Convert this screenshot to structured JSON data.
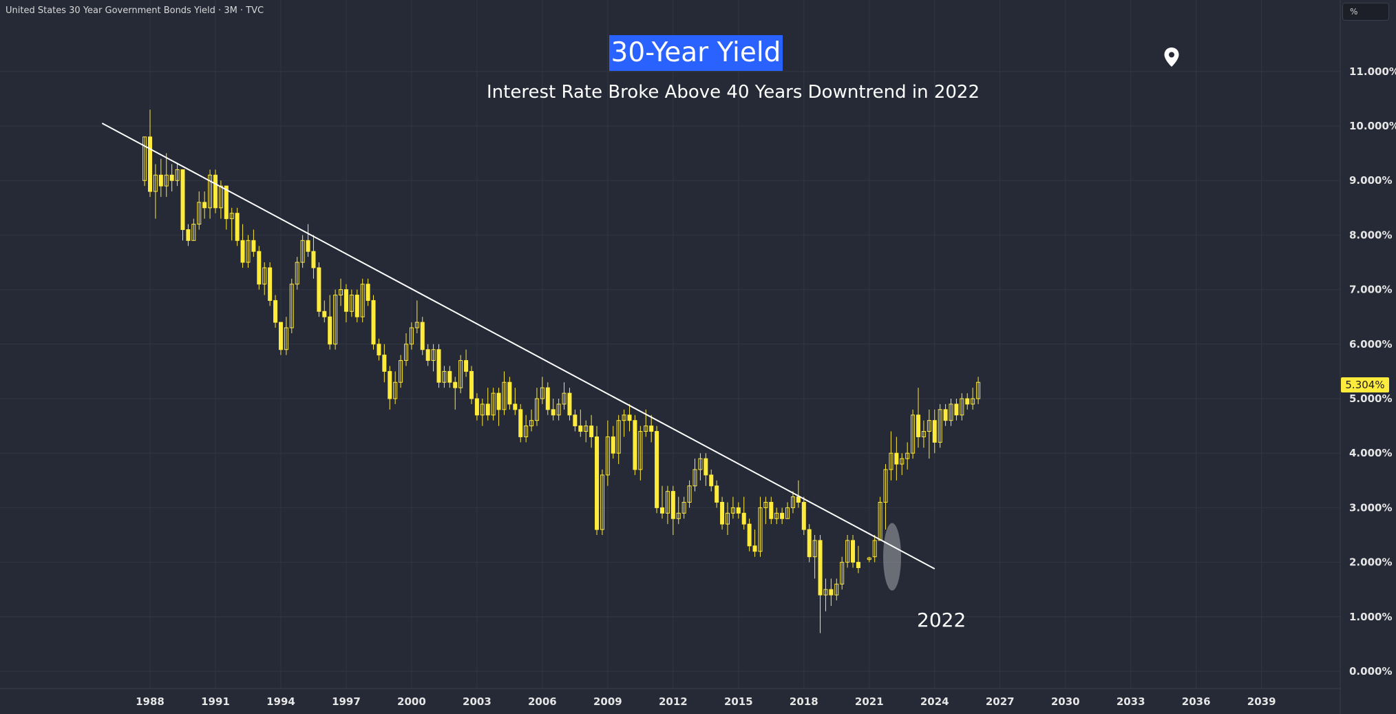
{
  "header": {
    "symbol_title": "United States 30 Year Government Bonds Yield · 3M · TVC",
    "unit_button": "%"
  },
  "annotations": {
    "main_title": "30-Year Yield",
    "subtitle": "Interest Rate Broke Above 40 Years Downtrend in 2022",
    "highlight_label": "2022",
    "last_price": "5.304%"
  },
  "colors": {
    "background": "#262a36",
    "candle": "#ffeb3b",
    "trendline": "#ffffff",
    "title_bg": "#2962ff",
    "grid": "#313644",
    "axis_text": "#e6e6e6"
  },
  "chart_data": {
    "type": "candlestick",
    "interval": "3M",
    "x_range": [
      1985.8,
      2041.0
    ],
    "ylim": [
      -0.2,
      12.2
    ],
    "x_ticks": [
      "1988",
      "1991",
      "1994",
      "1997",
      "2000",
      "2003",
      "2006",
      "2009",
      "2012",
      "2015",
      "2018",
      "2021",
      "2024",
      "2027",
      "2030",
      "2033",
      "2036",
      "2039"
    ],
    "y_ticks": [
      "0.000%",
      "1.000%",
      "2.000%",
      "3.000%",
      "4.000%",
      "5.000%",
      "6.000%",
      "7.000%",
      "8.000%",
      "9.000%",
      "10.000%",
      "11.000%"
    ],
    "y_tick_values": [
      0,
      1,
      2,
      3,
      4,
      5,
      6,
      7,
      8,
      9,
      10,
      11
    ],
    "grid": true,
    "trendline": {
      "start": [
        1985.8,
        10.05
      ],
      "end": [
        2024.0,
        1.88
      ]
    },
    "highlight": {
      "x": 2022.05,
      "y": 2.1,
      "label": "2022"
    },
    "last_value": 5.304,
    "candles": [
      [
        1987.75,
        9.0,
        9.8,
        8.9,
        9.8
      ],
      [
        1988.0,
        9.8,
        10.3,
        8.7,
        8.8
      ],
      [
        1988.25,
        8.8,
        9.3,
        8.3,
        9.1
      ],
      [
        1988.5,
        9.1,
        9.4,
        8.7,
        8.9
      ],
      [
        1988.75,
        8.9,
        9.5,
        8.7,
        9.1
      ],
      [
        1989.0,
        9.1,
        9.3,
        8.8,
        9.0
      ],
      [
        1989.25,
        9.0,
        9.3,
        8.9,
        9.2
      ],
      [
        1989.5,
        9.2,
        9.1,
        7.9,
        8.1
      ],
      [
        1989.75,
        8.1,
        8.2,
        7.8,
        7.9
      ],
      [
        1990.0,
        7.9,
        8.3,
        7.9,
        8.2
      ],
      [
        1990.25,
        8.2,
        8.8,
        8.1,
        8.6
      ],
      [
        1990.5,
        8.6,
        8.8,
        8.3,
        8.5
      ],
      [
        1990.75,
        8.5,
        9.2,
        8.3,
        9.1
      ],
      [
        1991.0,
        9.1,
        9.2,
        8.4,
        8.5
      ],
      [
        1991.25,
        8.5,
        9.0,
        8.3,
        8.9
      ],
      [
        1991.5,
        8.9,
        8.9,
        8.1,
        8.3
      ],
      [
        1991.75,
        8.3,
        8.5,
        7.9,
        8.4
      ],
      [
        1992.0,
        8.4,
        8.5,
        7.8,
        7.9
      ],
      [
        1992.25,
        7.9,
        8.2,
        7.4,
        7.5
      ],
      [
        1992.5,
        7.5,
        8.0,
        7.4,
        7.9
      ],
      [
        1992.75,
        7.9,
        8.1,
        7.6,
        7.7
      ],
      [
        1993.0,
        7.7,
        7.8,
        7.0,
        7.1
      ],
      [
        1993.25,
        7.1,
        7.5,
        6.9,
        7.4
      ],
      [
        1993.5,
        7.4,
        7.5,
        6.7,
        6.8
      ],
      [
        1993.75,
        6.8,
        6.9,
        6.3,
        6.4
      ],
      [
        1994.0,
        6.4,
        6.4,
        5.8,
        5.9
      ],
      [
        1994.25,
        5.9,
        6.5,
        5.8,
        6.3
      ],
      [
        1994.5,
        6.3,
        7.2,
        6.2,
        7.1
      ],
      [
        1994.75,
        7.1,
        7.6,
        7.0,
        7.5
      ],
      [
        1995.0,
        7.5,
        8.0,
        7.4,
        7.9
      ],
      [
        1995.25,
        7.9,
        8.2,
        7.6,
        7.7
      ],
      [
        1995.5,
        7.7,
        8.0,
        7.2,
        7.4
      ],
      [
        1995.75,
        7.4,
        7.5,
        6.5,
        6.6
      ],
      [
        1996.0,
        6.6,
        6.8,
        6.4,
        6.5
      ],
      [
        1996.25,
        6.5,
        6.9,
        5.9,
        6.0
      ],
      [
        1996.5,
        6.0,
        7.0,
        5.9,
        6.9
      ],
      [
        1996.75,
        6.9,
        7.2,
        6.7,
        7.0
      ],
      [
        1997.0,
        7.0,
        7.1,
        6.4,
        6.6
      ],
      [
        1997.25,
        6.6,
        7.0,
        6.5,
        6.9
      ],
      [
        1997.5,
        6.9,
        7.0,
        6.4,
        6.5
      ],
      [
        1997.75,
        6.5,
        7.2,
        6.4,
        7.1
      ],
      [
        1998.0,
        7.1,
        7.2,
        6.7,
        6.8
      ],
      [
        1998.25,
        6.8,
        6.9,
        5.9,
        6.0
      ],
      [
        1998.5,
        6.0,
        6.1,
        5.7,
        5.8
      ],
      [
        1998.75,
        5.8,
        6.0,
        5.3,
        5.5
      ],
      [
        1999.0,
        5.5,
        5.6,
        4.8,
        5.0
      ],
      [
        1999.25,
        5.0,
        5.5,
        4.9,
        5.3
      ],
      [
        1999.5,
        5.3,
        5.8,
        5.2,
        5.7
      ],
      [
        1999.75,
        5.7,
        6.2,
        5.6,
        6.0
      ],
      [
        2000.0,
        6.0,
        6.4,
        5.9,
        6.3
      ],
      [
        2000.25,
        6.3,
        6.8,
        6.2,
        6.4
      ],
      [
        2000.5,
        6.4,
        6.5,
        5.8,
        5.9
      ],
      [
        2000.75,
        5.9,
        6.0,
        5.6,
        5.7
      ],
      [
        2001.0,
        5.7,
        6.0,
        5.5,
        5.9
      ],
      [
        2001.25,
        5.9,
        6.0,
        5.2,
        5.3
      ],
      [
        2001.5,
        5.3,
        5.6,
        5.2,
        5.5
      ],
      [
        2001.75,
        5.5,
        5.6,
        5.2,
        5.3
      ],
      [
        2002.0,
        5.3,
        5.4,
        4.8,
        5.2
      ],
      [
        2002.25,
        5.2,
        5.8,
        5.1,
        5.7
      ],
      [
        2002.5,
        5.7,
        5.9,
        5.4,
        5.5
      ],
      [
        2002.75,
        5.5,
        5.6,
        4.9,
        5.0
      ],
      [
        2003.0,
        5.0,
        5.1,
        4.6,
        4.7
      ],
      [
        2003.25,
        4.7,
        5.0,
        4.5,
        4.9
      ],
      [
        2003.5,
        4.9,
        5.2,
        4.6,
        4.7
      ],
      [
        2003.75,
        4.7,
        5.2,
        4.6,
        5.1
      ],
      [
        2004.0,
        5.1,
        5.2,
        4.5,
        4.8
      ],
      [
        2004.25,
        4.8,
        5.5,
        4.7,
        5.3
      ],
      [
        2004.5,
        5.3,
        5.4,
        4.8,
        4.9
      ],
      [
        2004.75,
        4.9,
        5.2,
        4.7,
        4.8
      ],
      [
        2005.0,
        4.8,
        4.9,
        4.2,
        4.3
      ],
      [
        2005.25,
        4.3,
        4.7,
        4.2,
        4.5
      ],
      [
        2005.5,
        4.5,
        4.8,
        4.4,
        4.6
      ],
      [
        2005.75,
        4.6,
        5.2,
        4.5,
        5.0
      ],
      [
        2006.0,
        5.0,
        5.4,
        4.9,
        5.2
      ],
      [
        2006.25,
        5.2,
        5.3,
        4.7,
        4.8
      ],
      [
        2006.5,
        4.8,
        5.0,
        4.6,
        4.7
      ],
      [
        2006.75,
        4.7,
        5.0,
        4.6,
        4.9
      ],
      [
        2007.0,
        4.9,
        5.3,
        4.8,
        5.1
      ],
      [
        2007.25,
        5.1,
        5.2,
        4.6,
        4.7
      ],
      [
        2007.5,
        4.7,
        4.8,
        4.4,
        4.5
      ],
      [
        2007.75,
        4.5,
        4.8,
        4.3,
        4.4
      ],
      [
        2008.0,
        4.4,
        4.6,
        4.2,
        4.5
      ],
      [
        2008.25,
        4.5,
        4.7,
        4.1,
        4.3
      ],
      [
        2008.5,
        4.3,
        4.5,
        2.5,
        2.6
      ],
      [
        2008.75,
        2.6,
        3.7,
        2.5,
        3.6
      ],
      [
        2009.0,
        3.6,
        4.6,
        3.4,
        4.3
      ],
      [
        2009.25,
        4.3,
        4.5,
        3.9,
        4.0
      ],
      [
        2009.5,
        4.0,
        4.7,
        3.8,
        4.6
      ],
      [
        2009.75,
        4.6,
        4.8,
        4.3,
        4.7
      ],
      [
        2010.0,
        4.7,
        4.9,
        4.4,
        4.6
      ],
      [
        2010.25,
        4.6,
        4.7,
        3.6,
        3.7
      ],
      [
        2010.5,
        3.7,
        4.5,
        3.5,
        4.4
      ],
      [
        2010.75,
        4.4,
        4.8,
        4.3,
        4.5
      ],
      [
        2011.0,
        4.5,
        4.7,
        4.2,
        4.4
      ],
      [
        2011.25,
        4.4,
        4.5,
        2.9,
        3.0
      ],
      [
        2011.5,
        3.0,
        3.4,
        2.8,
        2.9
      ],
      [
        2011.75,
        2.9,
        3.4,
        2.7,
        3.3
      ],
      [
        2012.0,
        3.3,
        3.4,
        2.5,
        2.8
      ],
      [
        2012.25,
        2.8,
        3.2,
        2.7,
        2.9
      ],
      [
        2012.5,
        2.9,
        3.2,
        2.8,
        3.1
      ],
      [
        2012.75,
        3.1,
        3.5,
        3.0,
        3.4
      ],
      [
        2013.0,
        3.4,
        3.9,
        3.3,
        3.7
      ],
      [
        2013.25,
        3.7,
        4.0,
        3.5,
        3.9
      ],
      [
        2013.5,
        3.9,
        4.0,
        3.4,
        3.6
      ],
      [
        2013.75,
        3.6,
        3.7,
        3.3,
        3.4
      ],
      [
        2014.0,
        3.4,
        3.5,
        3.0,
        3.1
      ],
      [
        2014.25,
        3.1,
        3.2,
        2.6,
        2.7
      ],
      [
        2014.5,
        2.7,
        3.1,
        2.5,
        2.9
      ],
      [
        2014.75,
        2.9,
        3.2,
        2.8,
        3.0
      ],
      [
        2015.0,
        3.0,
        3.1,
        2.8,
        2.9
      ],
      [
        2015.25,
        2.9,
        3.2,
        2.6,
        2.7
      ],
      [
        2015.5,
        2.7,
        2.8,
        2.2,
        2.3
      ],
      [
        2015.75,
        2.3,
        2.6,
        2.1,
        2.2
      ],
      [
        2016.0,
        2.2,
        3.2,
        2.1,
        3.0
      ],
      [
        2016.25,
        3.0,
        3.2,
        2.7,
        3.1
      ],
      [
        2016.5,
        3.1,
        3.2,
        2.7,
        2.8
      ],
      [
        2016.75,
        2.8,
        3.0,
        2.7,
        2.9
      ],
      [
        2017.0,
        2.9,
        3.0,
        2.7,
        2.8
      ],
      [
        2017.25,
        2.8,
        3.1,
        2.8,
        3.0
      ],
      [
        2017.5,
        3.0,
        3.3,
        2.9,
        3.2
      ],
      [
        2017.75,
        3.2,
        3.5,
        3.0,
        3.1
      ],
      [
        2018.0,
        3.1,
        3.2,
        2.5,
        2.6
      ],
      [
        2018.25,
        2.6,
        2.7,
        2.0,
        2.1
      ],
      [
        2018.5,
        2.1,
        2.5,
        1.7,
        2.4
      ],
      [
        2018.75,
        2.4,
        2.5,
        0.7,
        1.4
      ],
      [
        2019.0,
        1.4,
        1.7,
        1.1,
        1.5
      ],
      [
        2019.25,
        1.5,
        1.7,
        1.2,
        1.4
      ],
      [
        2019.5,
        1.4,
        1.7,
        1.3,
        1.6
      ],
      [
        2019.75,
        1.6,
        2.1,
        1.5,
        2.0
      ],
      [
        2020.0,
        2.0,
        2.5,
        1.9,
        2.4
      ],
      [
        2020.25,
        2.4,
        2.5,
        1.9,
        2.0
      ],
      [
        2020.5,
        2.0,
        2.3,
        1.8,
        1.9
      ],
      [
        2021.0,
        2.05,
        2.1,
        2.0,
        2.08
      ],
      [
        2021.25,
        2.1,
        2.5,
        2.0,
        2.4
      ],
      [
        2021.5,
        2.4,
        3.2,
        2.4,
        3.1
      ],
      [
        2021.75,
        3.1,
        3.8,
        2.6,
        3.7
      ],
      [
        2022.0,
        3.7,
        4.4,
        3.5,
        4.0
      ],
      [
        2022.25,
        4.0,
        4.3,
        3.5,
        3.8
      ],
      [
        2022.5,
        3.8,
        4.0,
        3.6,
        3.9
      ],
      [
        2022.75,
        3.9,
        4.2,
        3.7,
        4.0
      ],
      [
        2023.0,
        4.0,
        4.8,
        3.9,
        4.7
      ],
      [
        2023.25,
        4.7,
        5.2,
        4.1,
        4.3
      ],
      [
        2023.5,
        4.3,
        4.6,
        4.1,
        4.4
      ],
      [
        2023.75,
        4.4,
        4.8,
        3.9,
        4.6
      ],
      [
        2024.0,
        4.6,
        4.8,
        4.0,
        4.2
      ],
      [
        2024.25,
        4.2,
        4.9,
        4.1,
        4.8
      ],
      [
        2024.5,
        4.8,
        4.9,
        4.5,
        4.6
      ],
      [
        2024.75,
        4.6,
        5.0,
        4.5,
        4.9
      ],
      [
        2025.0,
        4.9,
        5.0,
        4.6,
        4.7
      ],
      [
        2025.25,
        4.7,
        5.1,
        4.6,
        5.0
      ],
      [
        2025.5,
        5.0,
        5.1,
        4.8,
        4.9
      ],
      [
        2025.75,
        4.9,
        5.2,
        4.8,
        5.0
      ],
      [
        2026.0,
        5.0,
        5.4,
        4.9,
        5.3
      ]
    ]
  }
}
